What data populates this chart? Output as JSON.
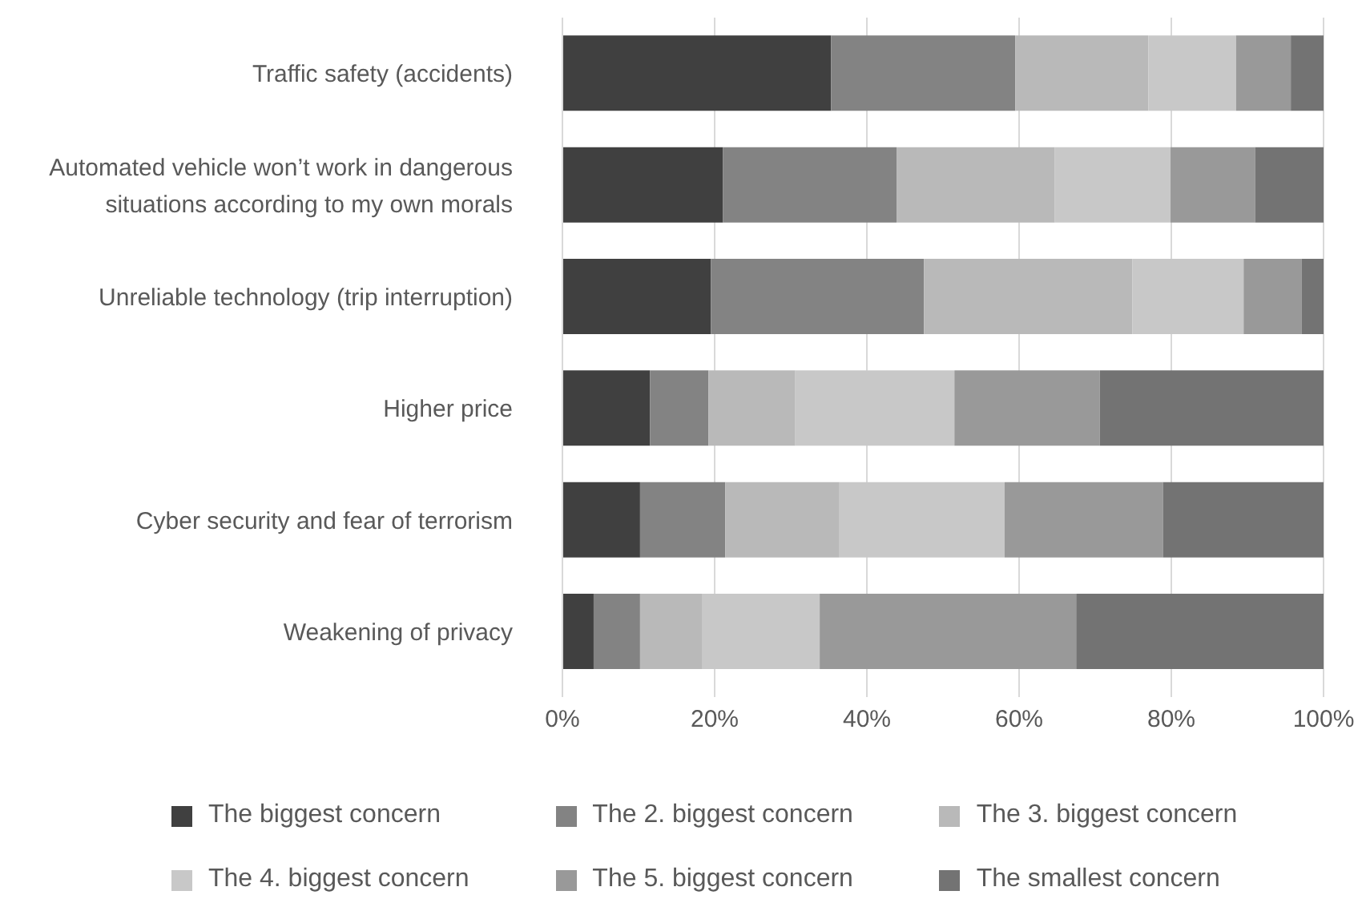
{
  "chart_data": {
    "type": "bar",
    "orientation": "horizontal",
    "stacked": true,
    "categories": [
      "Traffic safety (accidents)",
      "Automated vehicle won’t work in dangerous situations according to my own morals",
      "Unreliable technology (trip interruption)",
      "Higher price",
      "Cyber security and fear of terrorism",
      "Weakening of privacy"
    ],
    "series": [
      {
        "name": "The biggest concern",
        "color": "#404040",
        "values": [
          35.3,
          21.1,
          19.5,
          11.5,
          10.2,
          4.1
        ]
      },
      {
        "name": "The 2. biggest concern",
        "color": "#838383",
        "values": [
          24.2,
          22.8,
          28.0,
          7.7,
          11.2,
          6.1
        ]
      },
      {
        "name": "The 3. biggest concern",
        "color": "#b9b9b9",
        "values": [
          17.5,
          20.8,
          27.4,
          11.4,
          15.0,
          8.2
        ]
      },
      {
        "name": "The 4. biggest concern",
        "color": "#c8c8c8",
        "values": [
          11.5,
          15.2,
          14.6,
          20.9,
          21.7,
          15.4
        ]
      },
      {
        "name": "The 5. biggest concern",
        "color": "#999999",
        "values": [
          7.2,
          11.1,
          7.6,
          19.1,
          20.8,
          33.7
        ]
      },
      {
        "name": "The smallest concern",
        "color": "#737373",
        "values": [
          4.3,
          9.0,
          2.9,
          29.4,
          21.1,
          32.5
        ]
      }
    ],
    "xlim": [
      0,
      100
    ],
    "xticks": [
      {
        "value": 0,
        "label": "0%"
      },
      {
        "value": 20,
        "label": "20%"
      },
      {
        "value": 40,
        "label": "40%"
      },
      {
        "value": 60,
        "label": "60%"
      },
      {
        "value": 80,
        "label": "80%"
      },
      {
        "value": 100,
        "label": "100%"
      }
    ],
    "grid": "x",
    "legend": "bottom"
  }
}
